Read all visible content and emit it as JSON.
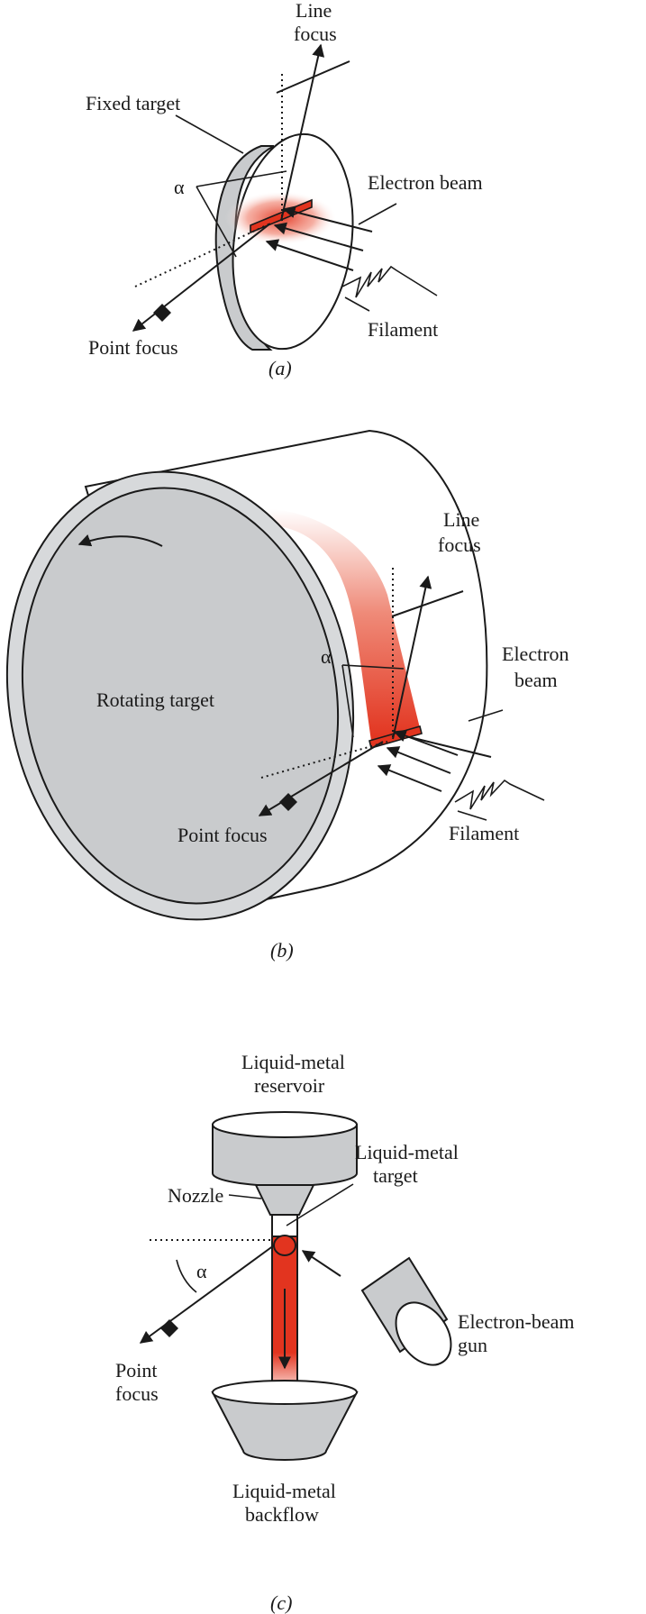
{
  "panel_a": {
    "line_focus_1": "Line",
    "line_focus_2": "focus",
    "fixed_target": "Fixed target",
    "alpha": "α",
    "electron_beam": "Electron beam",
    "filament": "Filament",
    "point_focus": "Point focus",
    "caption": "(a)"
  },
  "panel_b": {
    "line_focus_1": "Line",
    "line_focus_2": "focus",
    "alpha": "α",
    "electron_beam_1": "Electron",
    "electron_beam_2": "beam",
    "rotating_target": "Rotating target",
    "point_focus": "Point focus",
    "filament": "Filament",
    "caption": "(b)"
  },
  "panel_c": {
    "reservoir_1": "Liquid-metal",
    "reservoir_2": "reservoir",
    "target_1": "Liquid-metal",
    "target_2": "target",
    "nozzle": "Nozzle",
    "alpha": "α",
    "gun_1": "Electron-beam",
    "gun_2": "gun",
    "point_focus_1": "Point",
    "point_focus_2": "focus",
    "backflow_1": "Liquid-metal",
    "backflow_2": "backflow",
    "caption": "(c)"
  },
  "colors": {
    "target_grey": "#c9cbcd",
    "hot_red": "#e2341f",
    "ink": "#1a1a1a"
  }
}
